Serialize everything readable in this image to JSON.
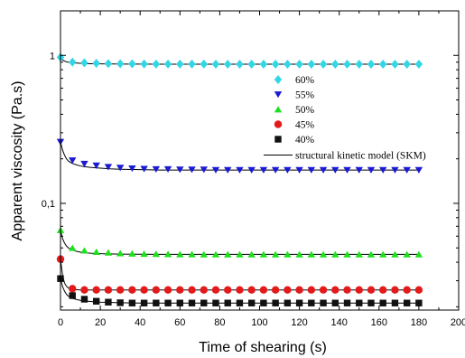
{
  "chart_data": {
    "type": "scatter",
    "xlabel": "Time of shearing (s)",
    "ylabel": "Apparent viscosity (Pa.s)",
    "xlim": [
      0,
      200
    ],
    "ylim": [
      0.019,
      2.0
    ],
    "yscale": "log",
    "x_ticks": [
      0,
      20,
      40,
      60,
      80,
      100,
      120,
      140,
      160,
      180,
      200
    ],
    "x_tick_labels": [
      "0",
      "20",
      "40",
      "60",
      "80",
      "100",
      "120",
      "140",
      "160",
      "180",
      "200"
    ],
    "y_ticks": [
      0.1,
      1
    ],
    "y_tick_labels": [
      "0,1",
      "1"
    ],
    "grid": false,
    "legend_position": "center-right",
    "x": [
      0,
      6,
      12,
      18,
      24,
      30,
      36,
      42,
      48,
      54,
      60,
      66,
      72,
      78,
      84,
      90,
      96,
      102,
      108,
      114,
      120,
      126,
      132,
      138,
      144,
      150,
      156,
      162,
      168,
      174,
      180
    ],
    "series": [
      {
        "name": "60%",
        "marker": "diamond",
        "color": "#33d6e6",
        "values": [
          0.97,
          0.9,
          0.89,
          0.885,
          0.88,
          0.878,
          0.876,
          0.875,
          0.874,
          0.874,
          0.873,
          0.873,
          0.873,
          0.872,
          0.872,
          0.872,
          0.872,
          0.872,
          0.872,
          0.872,
          0.872,
          0.872,
          0.872,
          0.872,
          0.872,
          0.872,
          0.872,
          0.872,
          0.872,
          0.872,
          0.872
        ]
      },
      {
        "name": "55%",
        "marker": "triangle-down",
        "color": "#1a1ad4",
        "values": [
          0.26,
          0.195,
          0.185,
          0.18,
          0.176,
          0.174,
          0.172,
          0.171,
          0.17,
          0.17,
          0.169,
          0.169,
          0.169,
          0.168,
          0.168,
          0.168,
          0.168,
          0.168,
          0.168,
          0.168,
          0.168,
          0.168,
          0.168,
          0.168,
          0.168,
          0.168,
          0.168,
          0.168,
          0.168,
          0.168,
          0.168
        ]
      },
      {
        "name": "50%",
        "marker": "triangle-up",
        "color": "#1ee01e",
        "values": [
          0.066,
          0.05,
          0.048,
          0.047,
          0.0465,
          0.046,
          0.0458,
          0.0456,
          0.0455,
          0.0454,
          0.0453,
          0.0453,
          0.0452,
          0.0452,
          0.0452,
          0.0452,
          0.0452,
          0.0452,
          0.0452,
          0.0452,
          0.0452,
          0.0452,
          0.0452,
          0.0452,
          0.0452,
          0.0452,
          0.0452,
          0.0452,
          0.0452,
          0.0452,
          0.0452
        ]
      },
      {
        "name": "45%",
        "marker": "circle",
        "color": "#e41a1a",
        "values": [
          0.042,
          0.0265,
          0.026,
          0.026,
          0.026,
          0.026,
          0.026,
          0.026,
          0.026,
          0.026,
          0.026,
          0.026,
          0.026,
          0.026,
          0.026,
          0.026,
          0.026,
          0.026,
          0.026,
          0.026,
          0.026,
          0.026,
          0.026,
          0.026,
          0.026,
          0.026,
          0.026,
          0.026,
          0.026,
          0.026,
          0.026
        ]
      },
      {
        "name": "40%",
        "marker": "square",
        "color": "#111111",
        "values": [
          0.031,
          0.0238,
          0.0225,
          0.0218,
          0.0215,
          0.0213,
          0.0212,
          0.0212,
          0.0212,
          0.0212,
          0.0212,
          0.0212,
          0.0212,
          0.0212,
          0.0212,
          0.0212,
          0.0212,
          0.0212,
          0.0212,
          0.0212,
          0.0212,
          0.0212,
          0.0212,
          0.0212,
          0.0212,
          0.0212,
          0.0212,
          0.0212,
          0.0212,
          0.0212,
          0.0212
        ]
      }
    ],
    "fit_line": {
      "name": "structural kinetic model (SKM)",
      "color": "#000000",
      "x": [
        0,
        1,
        2,
        3,
        4,
        5,
        6,
        8,
        10,
        12,
        15,
        20,
        25,
        30,
        40,
        50,
        60,
        80,
        100,
        120,
        150,
        180
      ],
      "curves": [
        [
          0.97,
          0.935,
          0.915,
          0.905,
          0.898,
          0.894,
          0.891,
          0.887,
          0.884,
          0.882,
          0.879,
          0.877,
          0.875,
          0.874,
          0.873,
          0.872,
          0.872,
          0.872,
          0.872,
          0.872,
          0.872,
          0.872
        ],
        [
          0.26,
          0.23,
          0.212,
          0.2,
          0.193,
          0.189,
          0.186,
          0.182,
          0.179,
          0.177,
          0.175,
          0.173,
          0.171,
          0.17,
          0.169,
          0.168,
          0.168,
          0.168,
          0.168,
          0.168,
          0.168,
          0.168
        ],
        [
          0.066,
          0.058,
          0.054,
          0.0515,
          0.05,
          0.049,
          0.0483,
          0.0474,
          0.0468,
          0.0464,
          0.046,
          0.0457,
          0.0455,
          0.0454,
          0.0453,
          0.0452,
          0.0452,
          0.0452,
          0.0452,
          0.0452,
          0.0452,
          0.0452
        ],
        [
          0.042,
          0.033,
          0.029,
          0.0275,
          0.0268,
          0.0264,
          0.0262,
          0.0261,
          0.026,
          0.026,
          0.026,
          0.026,
          0.026,
          0.026,
          0.026,
          0.026,
          0.026,
          0.026,
          0.026,
          0.026,
          0.026,
          0.026
        ],
        [
          0.031,
          0.0275,
          0.0255,
          0.0243,
          0.0236,
          0.0231,
          0.0228,
          0.0224,
          0.0221,
          0.0219,
          0.0217,
          0.0215,
          0.0214,
          0.0213,
          0.0212,
          0.0212,
          0.0212,
          0.0212,
          0.0212,
          0.0212,
          0.0212,
          0.0212
        ]
      ]
    }
  }
}
